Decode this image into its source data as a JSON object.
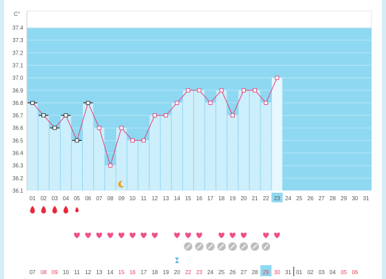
{
  "unit_label": "C°",
  "colors": {
    "chart_bg": "#8fd8f2",
    "bar_fill": "#cdeefb",
    "line": "#e0407a",
    "highlight": "#8fd8f2",
    "drop": "#e8283a",
    "heart": "#f0508a",
    "circle": "#bdbdbd",
    "moon": "#f0a020",
    "hourglass": "#5bb6e6",
    "weekend_text": "#e0455a"
  },
  "chart_data": {
    "type": "bar",
    "title": "",
    "ylabel": "C°",
    "ylim": [
      36.1,
      37.4
    ],
    "yticks": [
      "37.4",
      "37.3",
      "37.2",
      "37.1",
      "37.0",
      "36.9",
      "36.8",
      "36.7",
      "36.6",
      "36.5",
      "36.4",
      "36.3",
      "36.2",
      "36.1"
    ],
    "categories": [
      "01",
      "02",
      "03",
      "04",
      "05",
      "06",
      "07",
      "08",
      "09",
      "10",
      "11",
      "12",
      "13",
      "14",
      "15",
      "16",
      "17",
      "18",
      "19",
      "20",
      "21",
      "22",
      "23",
      "24",
      "25",
      "26",
      "27",
      "28",
      "29",
      "30",
      "31"
    ],
    "values": [
      36.8,
      36.7,
      36.6,
      36.7,
      36.5,
      36.8,
      36.6,
      36.3,
      36.6,
      36.5,
      36.5,
      36.7,
      36.7,
      36.8,
      36.9,
      36.9,
      36.8,
      36.9,
      36.7,
      36.9,
      36.9,
      36.8,
      37.0,
      null,
      null,
      null,
      null,
      null,
      null,
      null,
      null
    ],
    "square_marker_days": [
      "01",
      "02",
      "03",
      "04",
      "05",
      "06"
    ],
    "highlight_day": "23"
  },
  "bottom_dates": {
    "labels": [
      "07",
      "08",
      "09",
      "10",
      "11",
      "12",
      "13",
      "14",
      "15",
      "16",
      "17",
      "18",
      "19",
      "20",
      "22",
      "23",
      "24",
      "25",
      "26",
      "27",
      "28",
      "29",
      "30",
      "31",
      "01",
      "02",
      "03",
      "04",
      "05",
      "06"
    ],
    "weekend": [
      "08",
      "09",
      "15",
      "16",
      "22",
      "23",
      "29",
      "30",
      "05",
      "06"
    ],
    "highlight": "29"
  },
  "markers": {
    "drops": [
      {
        "day": "01",
        "size": "big"
      },
      {
        "day": "02",
        "size": "big"
      },
      {
        "day": "03",
        "size": "big"
      },
      {
        "day": "04",
        "size": "big"
      },
      {
        "day": "05",
        "size": "small"
      }
    ],
    "hearts": [
      "05",
      "06",
      "07",
      "08",
      "09",
      "10",
      "11",
      "12",
      "14",
      "15",
      "16",
      "18",
      "19",
      "20",
      "22",
      "23"
    ],
    "circles": [
      "15",
      "16",
      "17",
      "18",
      "19",
      "20",
      "21",
      "22"
    ],
    "moon_day": "09",
    "hourglass_day": "14"
  }
}
